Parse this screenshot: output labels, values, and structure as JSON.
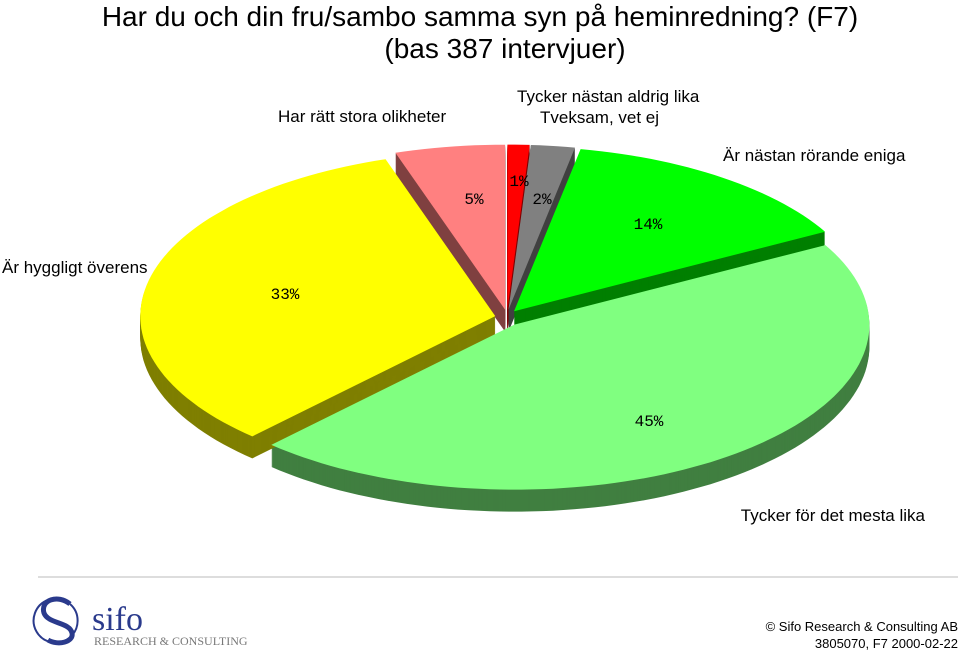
{
  "chart_data": {
    "type": "pie3d",
    "title": "Har du och din fru/sambo samma syn på heminredning?  (F7)",
    "subtitle": "(bas 387 intervjuer)",
    "categories": [
      "Tycker nästan aldrig lika",
      "Tveksam, vet ej",
      "Är nästan rörande eniga",
      "Tycker för det mesta lika",
      "Är hyggligt överens",
      "Har rätt stora olikheter"
    ],
    "values": [
      1,
      2,
      14,
      45,
      33,
      5
    ],
    "value_labels": [
      "1%",
      "2%",
      "14%",
      "45%",
      "33%",
      "5%"
    ],
    "colors": [
      "#ff0000",
      "#808080",
      "#00ff00",
      "#80ff80",
      "#ffff00",
      "#ff8080"
    ]
  },
  "footer": {
    "logo": "sifo",
    "logo_sub": "RESEARCH & CONSULTING",
    "copyright": "© Sifo Research & Consulting AB",
    "reference": "3805070, F7   2000-02-22"
  }
}
